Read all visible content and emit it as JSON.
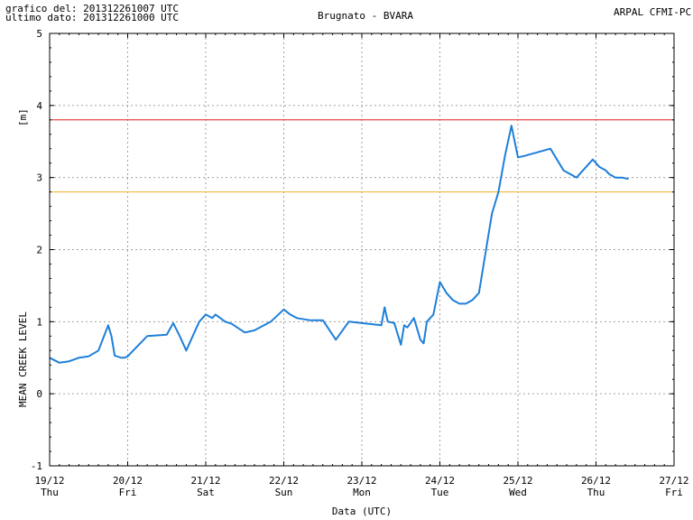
{
  "header": {
    "line1": "grafico del: 201312261007 UTC",
    "line2": "ultimo dato: 201312261000 UTC",
    "station": "Brugnato - BVARA",
    "source": "ARPAL CFMI-PC"
  },
  "chart_data": {
    "type": "line",
    "title": "Brugnato - BVARA",
    "xlabel": "Data (UTC)",
    "ylabel": "MEAN CREEK LEVEL",
    "yunit": "[m]",
    "ylim": [
      -1,
      5
    ],
    "yticks": [
      -1,
      0,
      1,
      2,
      3,
      4,
      5
    ],
    "xlim": [
      "2013-12-19 00:00",
      "2013-12-27 00:00"
    ],
    "xticks": [
      {
        "date": "19/12",
        "day": "Thu"
      },
      {
        "date": "20/12",
        "day": "Fri"
      },
      {
        "date": "21/12",
        "day": "Sat"
      },
      {
        "date": "22/12",
        "day": "Sun"
      },
      {
        "date": "23/12",
        "day": "Mon"
      },
      {
        "date": "24/12",
        "day": "Tue"
      },
      {
        "date": "25/12",
        "day": "Wed"
      },
      {
        "date": "26/12",
        "day": "Thu"
      },
      {
        "date": "27/12",
        "day": "Fri"
      }
    ],
    "grid": true,
    "thresholds": [
      {
        "value": 3.8,
        "color": "#e02020"
      },
      {
        "value": 2.8,
        "color": "#f0b020"
      }
    ],
    "series": [
      {
        "color": "#1e7fd8",
        "x": [
          "2013-12-19 00:00",
          "2013-12-19 03:00",
          "2013-12-19 06:00",
          "2013-12-19 09:00",
          "2013-12-19 12:00",
          "2013-12-19 15:00",
          "2013-12-19 18:00",
          "2013-12-19 19:00",
          "2013-12-19 20:00",
          "2013-12-19 22:00",
          "2013-12-19 23:00",
          "2013-12-20 00:00",
          "2013-12-20 06:00",
          "2013-12-20 12:00",
          "2013-12-20 14:00",
          "2013-12-20 16:00",
          "2013-12-20 18:00",
          "2013-12-20 22:00",
          "2013-12-21 00:00",
          "2013-12-21 02:00",
          "2013-12-21 03:00",
          "2013-12-21 06:00",
          "2013-12-21 08:00",
          "2013-12-21 12:00",
          "2013-12-21 15:00",
          "2013-12-21 20:00",
          "2013-12-22 00:00",
          "2013-12-22 02:00",
          "2013-12-22 04:00",
          "2013-12-22 08:00",
          "2013-12-22 12:00",
          "2013-12-22 16:00",
          "2013-12-22 20:00",
          "2013-12-23 00:00",
          "2013-12-23 06:00",
          "2013-12-23 07:00",
          "2013-12-23 08:00",
          "2013-12-23 10:00",
          "2013-12-23 12:00",
          "2013-12-23 13:00",
          "2013-12-23 14:00",
          "2013-12-23 16:00",
          "2013-12-23 18:00",
          "2013-12-23 19:00",
          "2013-12-23 20:00",
          "2013-12-23 22:00",
          "2013-12-24 00:00",
          "2013-12-24 02:00",
          "2013-12-24 04:00",
          "2013-12-24 06:00",
          "2013-12-24 08:00",
          "2013-12-24 10:00",
          "2013-12-24 12:00",
          "2013-12-24 14:00",
          "2013-12-24 16:00",
          "2013-12-24 18:00",
          "2013-12-24 20:00",
          "2013-12-24 22:00",
          "2013-12-25 00:00",
          "2013-12-25 02:00",
          "2013-12-25 06:00",
          "2013-12-25 10:00",
          "2013-12-25 14:00",
          "2013-12-25 16:00",
          "2013-12-25 18:00",
          "2013-12-25 20:00",
          "2013-12-25 22:00",
          "2013-12-25 23:00",
          "2013-12-26 00:00",
          "2013-12-26 01:00",
          "2013-12-26 03:00",
          "2013-12-26 04:00",
          "2013-12-26 06:00",
          "2013-12-26 08:00",
          "2013-12-26 10:00"
        ],
        "y": [
          0.5,
          0.43,
          0.45,
          0.5,
          0.52,
          0.6,
          0.95,
          0.8,
          0.53,
          0.5,
          0.5,
          0.52,
          0.8,
          0.82,
          0.98,
          0.8,
          0.6,
          1.0,
          1.1,
          1.05,
          1.1,
          1.0,
          0.97,
          0.85,
          0.88,
          1.0,
          1.17,
          1.1,
          1.05,
          1.02,
          1.02,
          0.75,
          1.0,
          0.98,
          0.95,
          1.2,
          1.0,
          0.98,
          0.68,
          0.95,
          0.92,
          1.05,
          0.75,
          0.7,
          1.0,
          1.1,
          1.55,
          1.4,
          1.3,
          1.25,
          1.25,
          1.3,
          1.4,
          1.95,
          2.5,
          2.8,
          3.3,
          3.72,
          3.28,
          3.3,
          3.35,
          3.4,
          3.1,
          3.05,
          3.0,
          3.1,
          3.2,
          3.25,
          3.2,
          3.15,
          3.1,
          3.05,
          3.0,
          3.0,
          2.98
        ]
      }
    ]
  }
}
